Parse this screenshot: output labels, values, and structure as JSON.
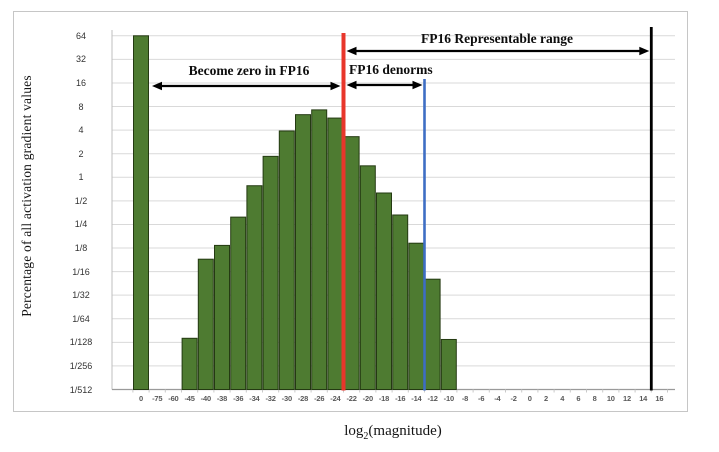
{
  "figure": {
    "y_axis_title": "Percentage of all activation gradient values",
    "x_axis_title": {
      "base": "log",
      "sub": "2",
      "rest": "(magnitude)"
    }
  },
  "annotations": {
    "become_zero": "Become zero in FP16",
    "denorms": "FP16 denorms",
    "representable": "FP16 Representable range"
  },
  "chart_data": {
    "type": "bar",
    "title": "",
    "xlabel": "log2(magnitude)",
    "ylabel": "Percentage of all activation gradient values",
    "y_scale": "log2",
    "ylim": [
      "1/512",
      "64"
    ],
    "grid": true,
    "y_tick_labels": [
      "64",
      "32",
      "16",
      "8",
      "4",
      "2",
      "1",
      "1/2",
      "1/4",
      "1/8",
      "1/16",
      "1/32",
      "1/64",
      "1/128",
      "1/256",
      "1/512"
    ],
    "categories": [
      "0",
      "-75",
      "-60",
      "-45",
      "-40",
      "-38",
      "-36",
      "-34",
      "-32",
      "-30",
      "-28",
      "-26",
      "-24",
      "-22",
      "-20",
      "-18",
      "-16",
      "-14",
      "-12",
      "-10",
      "-8",
      "-6",
      "-4",
      "-2",
      "0",
      "2",
      "4",
      "6",
      "8",
      "10",
      "12",
      "14",
      "16"
    ],
    "values": [
      64,
      0,
      0,
      0.0088,
      0.09,
      0.135,
      0.31,
      0.78,
      1.85,
      3.9,
      6.3,
      7.25,
      5.7,
      3.3,
      1.4,
      0.63,
      0.33,
      0.144,
      0.05,
      0.0085,
      0,
      0,
      0,
      0,
      0,
      0,
      0,
      0,
      0,
      0,
      0,
      0,
      0
    ],
    "bar_color": "#4e7b31",
    "bar_border_color": "#243a12",
    "gridline_color": "#d9d9d9",
    "reference_lines": [
      {
        "name": "fp16-min-denorm",
        "color": "#e8362b",
        "between": [
          "-24",
          "-22"
        ]
      },
      {
        "name": "fp16-min-normal",
        "color": "#3e6ec4",
        "between": [
          "-14",
          "-12"
        ]
      },
      {
        "name": "fp16-max",
        "color": "#000000",
        "between": [
          "14",
          "16"
        ]
      }
    ]
  }
}
